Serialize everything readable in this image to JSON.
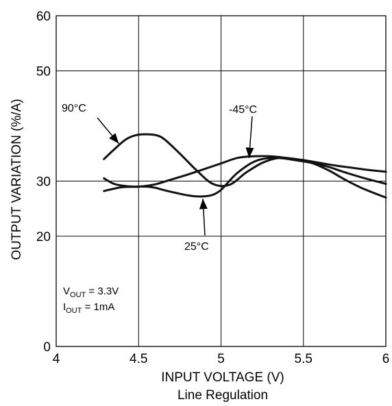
{
  "chart_data": {
    "type": "line",
    "title": "",
    "caption": "Line Regulation",
    "xlabel": "INPUT VOLTAGE (V)",
    "ylabel": "OUTPUT VARIATION (%/A)",
    "xlim": [
      4,
      6
    ],
    "ylim": [
      0,
      60
    ],
    "xticks": [
      4,
      4.5,
      5,
      5.5,
      6
    ],
    "xtick_labels": [
      "4",
      "4.5",
      "5",
      "5.5",
      "6"
    ],
    "yticks": [
      0,
      20,
      30,
      50,
      60
    ],
    "ytick_labels": [
      "0",
      "20",
      "30",
      "50",
      "60"
    ],
    "xgrid": [
      4.5,
      5,
      5.5
    ],
    "ygrid": [
      20,
      30,
      50
    ],
    "grid": true,
    "series": [
      {
        "name": "90°C",
        "x": [
          4.29,
          4.35,
          4.42,
          4.48,
          4.54,
          4.61,
          4.66,
          4.75,
          4.85,
          4.95,
          5.05,
          5.15,
          5.25,
          5.35,
          5.45,
          5.55,
          5.65,
          5.75,
          5.85,
          6.0
        ],
        "y": [
          34.0,
          35.7,
          37.5,
          38.3,
          38.5,
          38.3,
          37.5,
          35.0,
          32.0,
          29.5,
          29.3,
          31.5,
          33.3,
          34.2,
          34.0,
          33.3,
          32.0,
          30.3,
          28.8,
          27.0
        ]
      },
      {
        "name": "-45°C",
        "x": [
          4.29,
          4.4,
          4.5,
          4.6,
          4.7,
          4.8,
          4.9,
          5.0,
          5.1,
          5.2,
          5.3,
          5.4,
          5.5,
          5.6,
          5.7,
          5.8,
          5.9,
          6.0
        ],
        "y": [
          28.2,
          28.9,
          29.0,
          29.4,
          30.3,
          31.2,
          32.2,
          33.2,
          34.2,
          34.5,
          34.5,
          34.2,
          33.8,
          33.3,
          32.8,
          32.4,
          32.0,
          31.7
        ]
      },
      {
        "name": "25°C",
        "x": [
          4.29,
          4.35,
          4.42,
          4.48,
          4.55,
          4.6,
          4.65,
          4.72,
          4.8,
          4.88,
          4.95,
          5.0,
          5.05,
          5.1,
          5.18,
          5.25,
          5.35,
          5.45,
          5.55,
          5.65,
          5.75,
          5.85,
          6.0
        ],
        "y": [
          30.5,
          29.5,
          29.1,
          29.0,
          29.0,
          28.8,
          28.4,
          27.9,
          27.4,
          27.2,
          27.5,
          28.4,
          30.0,
          31.5,
          33.2,
          34.0,
          34.2,
          33.8,
          33.3,
          32.6,
          31.6,
          30.7,
          29.5
        ]
      }
    ],
    "annotations": [
      {
        "text": "90°C",
        "target": [
          4.38,
          36.8
        ]
      },
      {
        "text": "-45°C",
        "target": [
          5.17,
          34.2
        ]
      },
      {
        "text": "25°C",
        "target": [
          4.89,
          26.8
        ]
      }
    ],
    "note_lines": [
      {
        "main": "V",
        "sub": "OUT",
        "rest": " = 3.3V"
      },
      {
        "main": "I",
        "sub": "OUT",
        "rest": " = 1mA"
      }
    ]
  }
}
